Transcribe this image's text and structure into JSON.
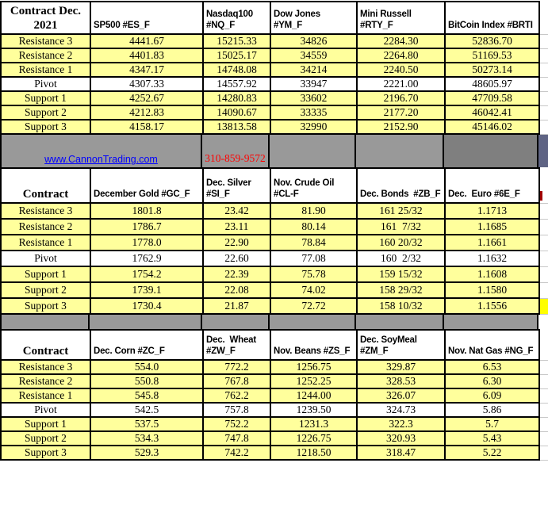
{
  "row_labels": [
    "Resistance 3",
    "Resistance 2",
    "Resistance 1",
    "Pivot",
    "Support 1",
    "Support 2",
    "Support 3"
  ],
  "tables": [
    {
      "name": "indices",
      "corner": "Contract Dec.\n2021",
      "columns": [
        {
          "header": "SP500 #ES_F",
          "values": [
            "4441.67",
            "4401.83",
            "4347.17",
            "4307.33",
            "4252.67",
            "4212.83",
            "4158.17"
          ]
        },
        {
          "header": "Nasdaq100\n#NQ_F",
          "values": [
            "15215.33",
            "15025.17",
            "14748.08",
            "14557.92",
            "14280.83",
            "14090.67",
            "13813.58"
          ]
        },
        {
          "header": "Dow Jones\n#YM_F",
          "values": [
            "34826",
            "34559",
            "34214",
            "33947",
            "33602",
            "33335",
            "32990"
          ]
        },
        {
          "header": "Mini Russell\n#RTY_F",
          "values": [
            "2284.30",
            "2264.80",
            "2240.50",
            "2221.00",
            "2196.70",
            "2177.20",
            "2152.90"
          ]
        },
        {
          "header": "BitCoin Index #BRTI",
          "values": [
            "52836.70",
            "51169.53",
            "50273.14",
            "48605.97",
            "47709.58",
            "46042.41",
            "45146.02"
          ]
        }
      ]
    },
    {
      "name": "metals-energy-financials",
      "corner": "Contract",
      "columns": [
        {
          "header": "December Gold #GC_F",
          "values": [
            "1801.8",
            "1786.7",
            "1778.0",
            "1762.9",
            "1754.2",
            "1739.1",
            "1730.4"
          ]
        },
        {
          "header": "Dec. Silver\n#SI_F",
          "values": [
            "23.42",
            "23.11",
            "22.90",
            "22.60",
            "22.39",
            "22.08",
            "21.87"
          ]
        },
        {
          "header": "Nov. Crude Oil\n#CL-F",
          "values": [
            "81.90",
            "80.14",
            "78.84",
            "77.08",
            "75.78",
            "74.02",
            "72.72"
          ]
        },
        {
          "header": "Dec. Bonds  #ZB_F",
          "values": [
            "161 25/32",
            "161  7/32",
            "160 20/32",
            "160  2/32",
            "159 15/32",
            "158 29/32",
            "158 10/32"
          ]
        },
        {
          "header": "Dec.  Euro #6E_F",
          "values": [
            "1.1713",
            "1.1685",
            "1.1661",
            "1.1632",
            "1.1608",
            "1.1580",
            "1.1556"
          ]
        }
      ]
    },
    {
      "name": "grains",
      "corner": "Contract",
      "columns": [
        {
          "header": "Dec. Corn #ZC_F",
          "values": [
            "554.0",
            "550.8",
            "545.8",
            "542.5",
            "537.5",
            "534.3",
            "529.3"
          ]
        },
        {
          "header": "Dec.  Wheat\n#ZW_F",
          "values": [
            "772.2",
            "767.8",
            "762.2",
            "757.8",
            "752.2",
            "747.8",
            "742.2"
          ]
        },
        {
          "header": "Nov. Beans #ZS_F",
          "values": [
            "1256.75",
            "1252.25",
            "1244.00",
            "1239.50",
            "1231.3",
            "1226.75",
            "1218.50"
          ]
        },
        {
          "header": "Dec. SoyMeal\n#ZM_F",
          "values": [
            "329.87",
            "328.53",
            "326.07",
            "324.73",
            "322.3",
            "320.93",
            "318.47"
          ]
        },
        {
          "header": "Nov. Nat Gas #NG_F",
          "values": [
            "6.53",
            "6.30",
            "6.09",
            "5.86",
            "5.7",
            "5.43",
            "5.22"
          ]
        }
      ]
    }
  ],
  "contact": {
    "website": "www.CannonTrading.com",
    "phone": "310-859-9572"
  },
  "colors": {
    "row_yellow": "#FFFF9C",
    "pivot_white": "#FFFFFF",
    "band_gray": "#999999",
    "band_dark_gray": "#7F7F7F",
    "edge_slate": "#5F6484",
    "edge_bright_yellow": "#FFFF00",
    "link_blue": "#0000FF",
    "phone_red": "#FF0000",
    "grid_black": "#000000"
  }
}
